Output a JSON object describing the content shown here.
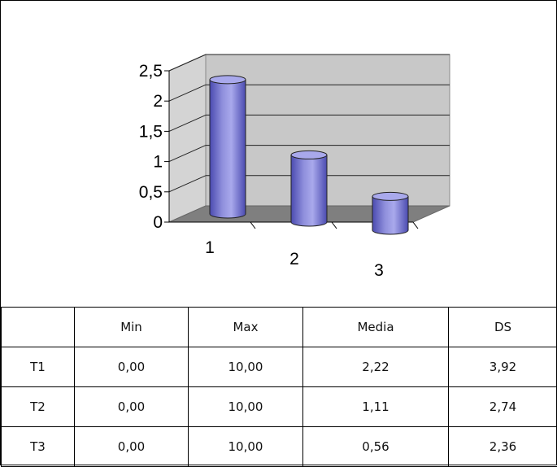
{
  "chart_data": {
    "type": "bar",
    "style": "3d-cylinder",
    "categories": [
      "1",
      "2",
      "3"
    ],
    "values": [
      2.22,
      1.11,
      0.56
    ],
    "ylim": [
      0,
      2.5
    ],
    "yticks": [
      "0",
      "0,5",
      "1",
      "1,5",
      "2",
      "2,5"
    ],
    "grid": true,
    "colors": {
      "bar": "#8f8fdc",
      "bar_dark": "#4b4bb0",
      "wall": "#c8c8c8",
      "floor": "#7f7f7f"
    },
    "title": "",
    "xlabel": "",
    "ylabel": ""
  },
  "table": {
    "headers": [
      "",
      "Min",
      "Max",
      "Media",
      "DS"
    ],
    "rows": [
      [
        "T1",
        "0,00",
        "10,00",
        "2,22",
        "3,92"
      ],
      [
        "T2",
        "0,00",
        "10,00",
        "1,11",
        "2,74"
      ],
      [
        "T3",
        "0,00",
        "10,00",
        "0,56",
        "2,36"
      ]
    ]
  }
}
